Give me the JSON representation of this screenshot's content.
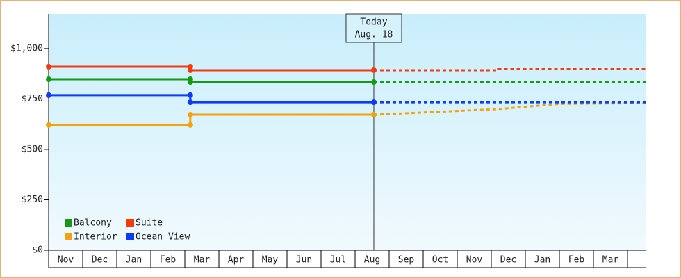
{
  "chart_data": {
    "type": "line",
    "categories": [
      "Nov",
      "Dec",
      "Jan",
      "Feb",
      "Mar",
      "Apr",
      "May",
      "Jun",
      "Jul",
      "Aug",
      "Sep",
      "Oct",
      "Nov",
      "Dec",
      "Jan",
      "Feb",
      "Mar"
    ],
    "x": [
      0,
      4.16,
      4.16,
      9.55
    ],
    "forecast_x": [
      9.55,
      13.2,
      13.2,
      15,
      17.55
    ],
    "xlim": [
      0,
      17.55
    ],
    "ylim": [
      0,
      1172
    ],
    "yticks": [
      {
        "value": 0,
        "label": "$0"
      },
      {
        "value": 250,
        "label": "$250"
      },
      {
        "value": 500,
        "label": "$500"
      },
      {
        "value": 750,
        "label": "$750"
      },
      {
        "value": 1000,
        "label": "$1,000"
      }
    ],
    "today": {
      "x": 9.55,
      "label": "Today",
      "date": "Aug. 18"
    },
    "series": [
      {
        "name": "Balcony",
        "color": "#159a15",
        "values": [
          848,
          848,
          834,
          834
        ],
        "forecast_values": [
          834,
          834,
          834,
          834,
          834
        ]
      },
      {
        "name": "Suite",
        "color": "#f53a0e",
        "values": [
          910,
          910,
          893,
          893
        ],
        "forecast_values": [
          893,
          893,
          898,
          898,
          898
        ]
      },
      {
        "name": "Interior",
        "color": "#f2a20c",
        "values": [
          621,
          621,
          672,
          672
        ],
        "forecast_values": [
          672,
          700,
          700,
          726,
          730
        ]
      },
      {
        "name": "Ocean View",
        "color": "#0d3cf5",
        "values": [
          769,
          769,
          734,
          734
        ],
        "forecast_values": [
          734,
          734,
          734,
          734,
          734
        ]
      }
    ]
  }
}
